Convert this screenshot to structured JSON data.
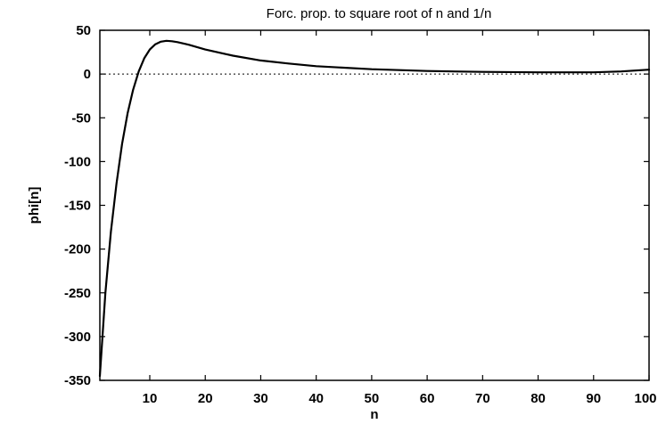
{
  "chart_data": {
    "type": "line",
    "title": "Forc. prop. to square root of n and 1/n",
    "xlabel": "n",
    "ylabel": "phi[n]",
    "xlim": [
      1,
      100
    ],
    "ylim": [
      -350,
      50
    ],
    "xticks": [
      10,
      20,
      30,
      40,
      50,
      60,
      70,
      80,
      90,
      100
    ],
    "yticks": [
      50,
      0,
      -50,
      -100,
      -150,
      -200,
      -250,
      -300,
      -350
    ],
    "grid": false,
    "legend": "none",
    "reference_line": {
      "y": 0,
      "style": "dotted"
    },
    "series": [
      {
        "x": [
          1,
          2,
          3,
          4,
          5,
          6,
          7,
          8,
          9,
          10,
          11,
          12,
          13,
          14,
          15,
          17,
          20,
          25,
          30,
          35,
          40,
          50,
          60,
          70,
          80,
          90,
          95,
          100
        ],
        "values": [
          -345,
          -250,
          -180,
          -125,
          -80,
          -45,
          -18,
          3,
          18,
          28,
          34,
          37,
          38,
          37.5,
          36.5,
          33.5,
          28,
          21,
          15.5,
          12,
          9,
          5.5,
          3.5,
          2.5,
          2,
          2,
          3,
          5
        ]
      }
    ]
  }
}
